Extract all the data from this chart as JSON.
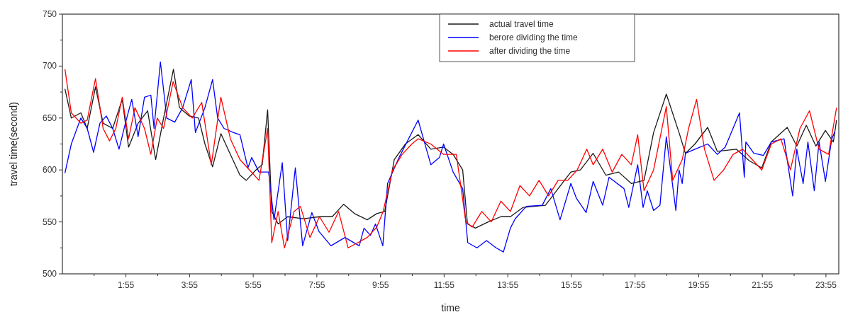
{
  "chart_data": {
    "type": "line",
    "xlabel": "time",
    "ylabel": "travel time(second)",
    "xlim": [
      -0.08,
      24.32
    ],
    "ylim": [
      500,
      750
    ],
    "xticks": [
      {
        "value": 0.917,
        "label": null
      },
      {
        "value": 1.917,
        "label": "1:55"
      },
      {
        "value": 2.917,
        "label": null
      },
      {
        "value": 3.917,
        "label": "3:55"
      },
      {
        "value": 4.917,
        "label": null
      },
      {
        "value": 5.917,
        "label": "5:55"
      },
      {
        "value": 6.917,
        "label": null
      },
      {
        "value": 7.917,
        "label": "7:55"
      },
      {
        "value": 8.917,
        "label": null
      },
      {
        "value": 9.917,
        "label": "9:55"
      },
      {
        "value": 10.917,
        "label": null
      },
      {
        "value": 11.917,
        "label": "11:55"
      },
      {
        "value": 12.917,
        "label": null
      },
      {
        "value": 13.917,
        "label": "13:55"
      },
      {
        "value": 14.917,
        "label": null
      },
      {
        "value": 15.917,
        "label": "15:55"
      },
      {
        "value": 16.917,
        "label": null
      },
      {
        "value": 17.917,
        "label": "17:55"
      },
      {
        "value": 18.917,
        "label": null
      },
      {
        "value": 19.917,
        "label": "19:55"
      },
      {
        "value": 20.917,
        "label": null
      },
      {
        "value": 21.917,
        "label": "21:55"
      },
      {
        "value": 22.917,
        "label": null
      },
      {
        "value": 23.917,
        "label": "23:55"
      }
    ],
    "yticks": [
      500,
      {
        "value": 525,
        "label": null
      },
      550,
      {
        "value": 575,
        "label": null
      },
      600,
      {
        "value": 625,
        "label": null
      },
      650,
      {
        "value": 675,
        "label": null
      },
      700,
      {
        "value": 725,
        "label": null
      },
      750
    ],
    "grid": false,
    "legend": "top",
    "line_style": "solid",
    "marker": "none",
    "series": [
      {
        "name": "actual travel time",
        "color": "#1a1a1a",
        "x": [
          0,
          0.2,
          0.5,
          0.7,
          0.96,
          1.2,
          1.5,
          1.8,
          2.0,
          2.3,
          2.6,
          2.85,
          3.1,
          3.41,
          3.6,
          3.9,
          4.2,
          4.4,
          4.64,
          4.9,
          5.2,
          5.5,
          5.7,
          6.0,
          6.2,
          6.37,
          6.5,
          6.7,
          7.0,
          7.5,
          8.0,
          8.4,
          8.76,
          9.1,
          9.5,
          9.8,
          10.05,
          10.35,
          10.7,
          11.1,
          11.5,
          11.9,
          12.2,
          12.5,
          12.65,
          12.9,
          13.3,
          13.7,
          14.0,
          14.4,
          15.1,
          15.5,
          15.9,
          16.2,
          16.6,
          17.0,
          17.4,
          17.8,
          18.2,
          18.5,
          18.9,
          19.3,
          19.5,
          19.8,
          20.2,
          20.5,
          21.1,
          21.5,
          21.9,
          22.2,
          22.7,
          23.0,
          23.3,
          23.6,
          23.9,
          24.15,
          24.25
        ],
        "values": [
          678,
          650,
          655,
          640,
          680,
          645,
          640,
          668,
          622,
          645,
          657,
          610,
          650,
          697,
          660,
          652,
          650,
          625,
          603,
          635,
          615,
          595,
          590,
          600,
          605,
          658,
          560,
          548,
          555,
          553,
          555,
          555,
          567,
          558,
          552,
          558,
          560,
          610,
          625,
          634,
          620,
          622,
          615,
          600,
          548,
          544,
          550,
          555,
          555,
          564,
          566,
          582,
          598,
          600,
          616,
          595,
          598,
          587,
          590,
          636,
          673,
          636,
          616,
          625,
          641,
          618,
          620,
          609,
          602,
          627,
          641,
          623,
          643,
          623,
          638,
          627,
          648
        ]
      },
      {
        "name": "berore dividing the time",
        "color": "#0000ff",
        "x": [
          0,
          0.2,
          0.5,
          0.7,
          0.9,
          1.1,
          1.3,
          1.5,
          1.7,
          1.9,
          2.1,
          2.3,
          2.5,
          2.7,
          2.8,
          3.0,
          3.2,
          3.45,
          3.7,
          3.97,
          4.1,
          4.4,
          4.64,
          4.8,
          5.0,
          5.3,
          5.5,
          5.75,
          5.87,
          6.1,
          6.4,
          6.57,
          6.83,
          7.0,
          7.24,
          7.47,
          7.76,
          7.98,
          8.36,
          8.8,
          9.25,
          9.4,
          9.6,
          9.76,
          9.99,
          10.14,
          10.5,
          11.1,
          11.5,
          11.77,
          11.9,
          12.2,
          12.5,
          12.66,
          12.95,
          13.25,
          13.55,
          13.78,
          14.0,
          14.15,
          14.5,
          15.0,
          15.27,
          15.56,
          15.9,
          16.07,
          16.38,
          16.6,
          16.9,
          17.1,
          17.57,
          17.72,
          18.0,
          18.17,
          18.3,
          18.5,
          18.7,
          18.9,
          19.2,
          19.3,
          19.4,
          19.5,
          19.8,
          20.2,
          20.5,
          20.75,
          21.2,
          21.35,
          21.4,
          21.65,
          21.95,
          22.2,
          22.6,
          22.87,
          23.0,
          23.2,
          23.35,
          23.55,
          23.7,
          23.9,
          24.1,
          24.2
        ],
        "values": [
          597,
          625,
          650,
          640,
          617,
          645,
          652,
          640,
          620,
          645,
          668,
          632,
          670,
          672,
          640,
          704,
          650,
          646,
          660,
          687,
          636,
          660,
          687,
          650,
          640,
          636,
          634,
          602,
          612,
          598,
          598,
          552,
          607,
          532,
          602,
          527,
          559,
          541,
          527,
          535,
          527,
          544,
          537,
          548,
          527,
          587,
          612,
          648,
          605,
          612,
          625,
          598,
          582,
          530,
          525,
          532,
          525,
          521,
          544,
          553,
          565,
          566,
          582,
          552,
          587,
          573,
          559,
          589,
          566,
          593,
          582,
          564,
          605,
          564,
          580,
          561,
          566,
          632,
          561,
          600,
          587,
          616,
          620,
          625,
          615,
          622,
          655,
          593,
          627,
          616,
          614,
          627,
          630,
          575,
          620,
          587,
          627,
          580,
          627,
          589,
          630,
          637
        ]
      },
      {
        "name": "after dividing the time",
        "color": "#ff0000",
        "x": [
          0,
          0.2,
          0.5,
          0.7,
          0.96,
          1.2,
          1.4,
          1.6,
          1.8,
          2.0,
          2.2,
          2.5,
          2.7,
          2.9,
          3.1,
          3.4,
          3.7,
          4.0,
          4.3,
          4.6,
          4.9,
          5.2,
          5.5,
          5.8,
          6.1,
          6.37,
          6.5,
          6.7,
          6.9,
          7.2,
          7.4,
          7.7,
          8.0,
          8.3,
          8.6,
          8.9,
          9.2,
          9.5,
          9.8,
          10.0,
          10.3,
          10.6,
          10.9,
          11.1,
          11.5,
          11.9,
          12.3,
          12.6,
          12.8,
          13.1,
          13.4,
          13.7,
          14.0,
          14.3,
          14.6,
          14.9,
          15.2,
          15.5,
          15.8,
          16.1,
          16.4,
          16.6,
          16.9,
          17.2,
          17.5,
          17.8,
          18.0,
          18.2,
          18.5,
          18.9,
          19.1,
          19.4,
          19.6,
          19.85,
          20.1,
          20.4,
          20.7,
          21.0,
          21.3,
          21.6,
          21.9,
          22.2,
          22.5,
          22.8,
          23.1,
          23.4,
          23.7,
          24.0,
          24.25
        ],
        "values": [
          697,
          655,
          645,
          648,
          688,
          640,
          628,
          640,
          670,
          630,
          660,
          640,
          615,
          650,
          640,
          685,
          660,
          650,
          665,
          605,
          670,
          630,
          610,
          600,
          590,
          640,
          530,
          560,
          525,
          560,
          565,
          535,
          555,
          540,
          560,
          525,
          530,
          535,
          545,
          560,
          600,
          615,
          625,
          630,
          625,
          615,
          615,
          550,
          545,
          560,
          550,
          570,
          560,
          585,
          575,
          590,
          575,
          590,
          590,
          600,
          620,
          605,
          620,
          598,
          615,
          605,
          634,
          580,
          600,
          661,
          590,
          610,
          640,
          668,
          620,
          590,
          600,
          615,
          620,
          610,
          600,
          625,
          630,
          600,
          640,
          657,
          620,
          615,
          660
        ]
      }
    ]
  }
}
